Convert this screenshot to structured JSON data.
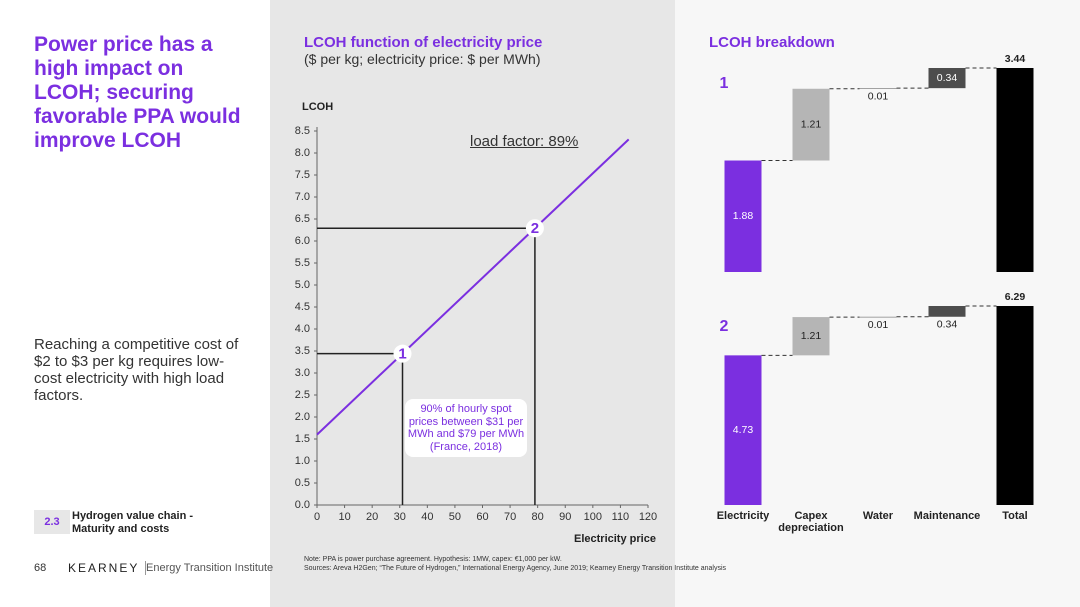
{
  "headline": "Power price has a high impact on LCOH; securing favorable PPA would improve LCOH",
  "body": "Reaching a competitive cost of $2 to $3 per kg requires low-cost electricity with high load factors.",
  "chapter": {
    "number": "2.3",
    "label": "Hydrogen value chain - Maturity and costs"
  },
  "footer": {
    "page": "68",
    "brand": "KEARNEY",
    "institute": "Energy Transition Institute"
  },
  "note": "Note: PPA is power purchase agreement. Hypothesis: 1MW, capex: €1,000 per kW.",
  "sources": "Sources: Areva H2Gen; “The Future of Hydrogen,” International Energy Agency, June 2019; Kearney Energy Transition Institute analysis",
  "chart_data": [
    {
      "type": "line",
      "title": "LCOH function of electricity price",
      "subtitle": "($ per kg; electricity price: $ per MWh)",
      "y_label": "LCOH",
      "x_label": "Electricity price",
      "x": [
        0,
        113
      ],
      "values": [
        1.6,
        8.31
      ],
      "color": "#7b2fe0",
      "xlim": [
        0,
        120
      ],
      "xticks": [
        0,
        10,
        20,
        30,
        40,
        50,
        60,
        70,
        80,
        90,
        100,
        110,
        120
      ],
      "ylim": [
        0,
        8.5
      ],
      "yticks": [
        {
          "value": 0,
          "label": "0.0"
        },
        0.5,
        {
          "value": 1,
          "label": "1.0"
        },
        1.5,
        {
          "value": 2,
          "label": "2.0"
        },
        2.5,
        {
          "value": 3,
          "label": "3.0"
        },
        3.5,
        {
          "value": 4,
          "label": "4.0"
        },
        4.5,
        {
          "value": 5,
          "label": "5.0"
        },
        5.5,
        {
          "value": 6,
          "label": "6.0"
        },
        6.5,
        {
          "value": 7,
          "label": "7.0"
        },
        7.5,
        {
          "value": 8,
          "label": "8.0"
        },
        8.5
      ],
      "points": [
        {
          "label": "1",
          "x": 31,
          "y": 3.44
        },
        {
          "label": "2",
          "x": 79,
          "y": 6.29
        }
      ],
      "annotations": [
        "load factor: 89%",
        "90% of hourly spot prices between $31 per MWh and $79 per MWh (France, 2018)"
      ]
    },
    {
      "type": "waterfall",
      "title": "LCOH breakdown",
      "categories": [
        "Electricity",
        "Capex depreciation",
        "Water",
        "Maintenance",
        "Total"
      ],
      "colors": [
        "#7b2fe0",
        "#b5b5b5",
        "#8c8c8c",
        "#4d4d4d",
        "#000000"
      ],
      "panels": [
        {
          "name": "1",
          "values": [
            1.88,
            1.21,
            0.01,
            0.34,
            3.44
          ]
        },
        {
          "name": "2",
          "values": [
            4.73,
            1.21,
            0.01,
            0.34,
            6.29
          ]
        }
      ]
    }
  ]
}
